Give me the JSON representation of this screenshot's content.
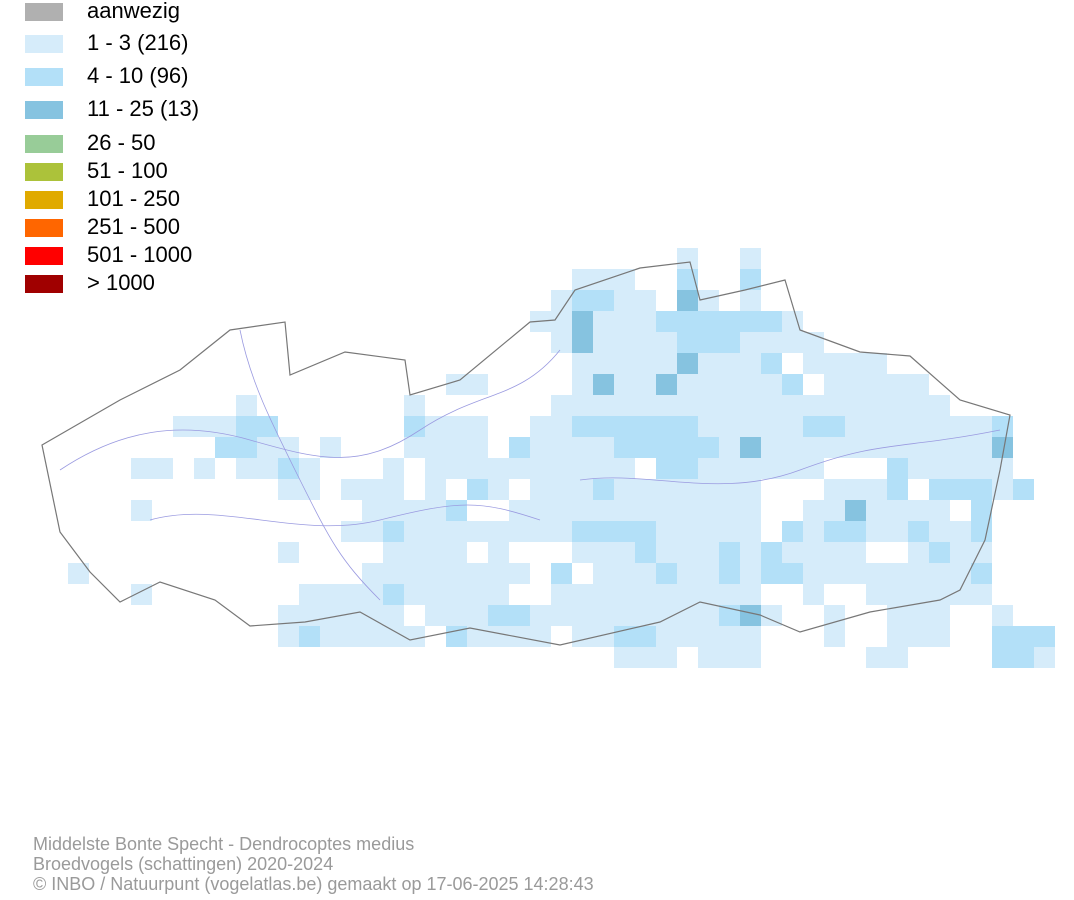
{
  "legend": {
    "items": [
      {
        "label": "aanwezig",
        "color": "#b0b0b0"
      },
      {
        "label": "1 - 3 (216)",
        "color": "#d6ecfa"
      },
      {
        "label": "4 - 10 (96)",
        "color": "#b3e0f8"
      },
      {
        "label": "11 - 25 (13)",
        "color": "#86c3e0"
      },
      {
        "label": "26 - 50",
        "color": "#98cc98"
      },
      {
        "label": "51 - 100",
        "color": "#acc23a"
      },
      {
        "label": "101 - 250",
        "color": "#e0aa00"
      },
      {
        "label": "251 - 500",
        "color": "#ff6600"
      },
      {
        "label": "501 - 1000",
        "color": "#ff0000"
      },
      {
        "label": "> 1000",
        "color": "#a00000"
      }
    ]
  },
  "footer": {
    "lines": [
      "Middelste Bonte Specht - Dendrocoptes medius",
      "Broedvogels (schattingen) 2020-2024",
      "© INBO / Natuurpunt (vogelatlas.be) gemaakt op 17-06-2025 14:28:43"
    ]
  }
}
